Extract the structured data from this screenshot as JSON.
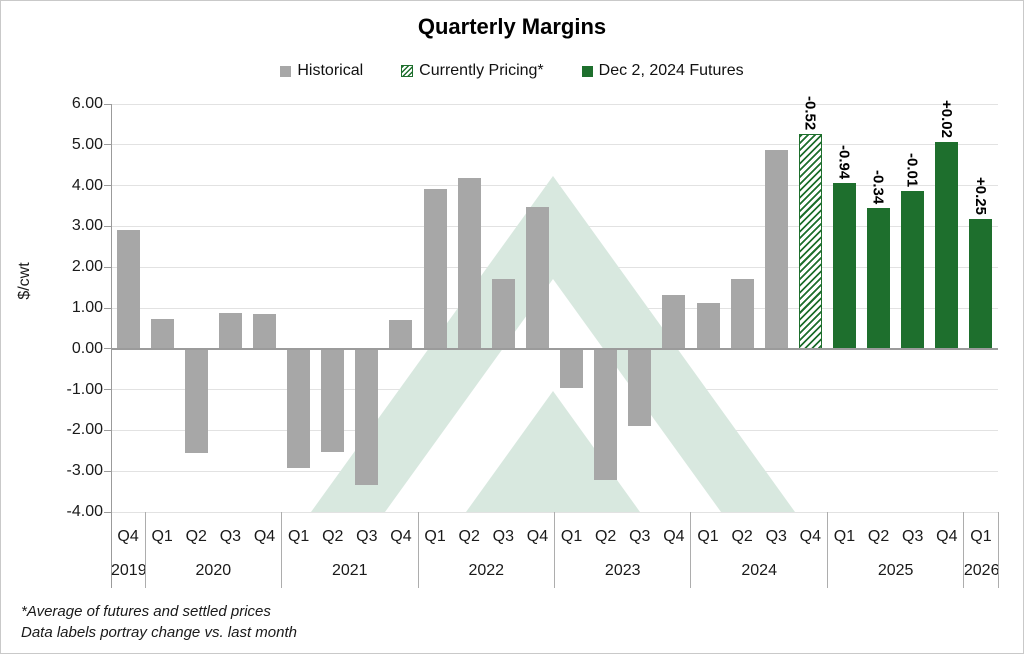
{
  "title": "Quarterly Margins",
  "legend": {
    "items": [
      {
        "label": "Historical",
        "swatch": "historical"
      },
      {
        "label": "Currently Pricing*",
        "swatch": "currently-pricing"
      },
      {
        "label": "Dec 2, 2024 Futures",
        "swatch": "futures"
      }
    ]
  },
  "footnotes": {
    "line1": "*Average of futures and settled prices",
    "line2": "Data labels portray change vs. last month"
  },
  "colors": {
    "historical_bar": "#a7a7a7",
    "futures_bar": "#1e6f2d",
    "hatch_stripe": "#1e6f2d",
    "gridline": "#e2e2e2",
    "axis_line": "#9b9b9b",
    "watermark_green": "#d8e8df",
    "label_text": "#000000"
  },
  "chart_data": {
    "type": "bar",
    "title": "Quarterly Margins",
    "xlabel": "",
    "ylabel": "$/cwt",
    "ylim": [
      -4,
      6
    ],
    "ytick_step": 1,
    "ytick_labels": [
      "6.00",
      "5.00",
      "4.00",
      "3.00",
      "2.00",
      "1.00",
      "0.00",
      "-1.00",
      "-2.00",
      "-3.00",
      "-4.00"
    ],
    "grid": true,
    "legend_position": "top",
    "series_names": [
      "Historical",
      "Currently Pricing*",
      "Dec 2, 2024 Futures"
    ],
    "bars": [
      {
        "quarter": "Q4",
        "year": "2019",
        "value": 2.9,
        "series": "historical"
      },
      {
        "quarter": "Q1",
        "year": "2020",
        "value": 0.72,
        "series": "historical"
      },
      {
        "quarter": "Q2",
        "year": "2020",
        "value": -2.55,
        "series": "historical"
      },
      {
        "quarter": "Q3",
        "year": "2020",
        "value": 0.88,
        "series": "historical"
      },
      {
        "quarter": "Q4",
        "year": "2020",
        "value": 0.85,
        "series": "historical"
      },
      {
        "quarter": "Q1",
        "year": "2021",
        "value": -2.93,
        "series": "historical"
      },
      {
        "quarter": "Q2",
        "year": "2021",
        "value": -2.52,
        "series": "historical"
      },
      {
        "quarter": "Q3",
        "year": "2021",
        "value": -3.33,
        "series": "historical"
      },
      {
        "quarter": "Q4",
        "year": "2021",
        "value": 0.7,
        "series": "historical"
      },
      {
        "quarter": "Q1",
        "year": "2022",
        "value": 3.92,
        "series": "historical"
      },
      {
        "quarter": "Q2",
        "year": "2022",
        "value": 4.18,
        "series": "historical"
      },
      {
        "quarter": "Q3",
        "year": "2022",
        "value": 1.7,
        "series": "historical"
      },
      {
        "quarter": "Q4",
        "year": "2022",
        "value": 3.48,
        "series": "historical"
      },
      {
        "quarter": "Q1",
        "year": "2023",
        "value": -0.97,
        "series": "historical"
      },
      {
        "quarter": "Q2",
        "year": "2023",
        "value": -3.22,
        "series": "historical"
      },
      {
        "quarter": "Q3",
        "year": "2023",
        "value": -1.88,
        "series": "historical"
      },
      {
        "quarter": "Q4",
        "year": "2023",
        "value": 1.32,
        "series": "historical"
      },
      {
        "quarter": "Q1",
        "year": "2024",
        "value": 1.13,
        "series": "historical"
      },
      {
        "quarter": "Q2",
        "year": "2024",
        "value": 1.7,
        "series": "historical"
      },
      {
        "quarter": "Q3",
        "year": "2024",
        "value": 4.88,
        "series": "historical"
      },
      {
        "quarter": "Q4",
        "year": "2024",
        "value": 5.26,
        "series": "pricing",
        "label": "-0.52"
      },
      {
        "quarter": "Q1",
        "year": "2025",
        "value": 4.06,
        "series": "futures",
        "label": "-0.94"
      },
      {
        "quarter": "Q2",
        "year": "2025",
        "value": 3.45,
        "series": "futures",
        "label": "-0.34"
      },
      {
        "quarter": "Q3",
        "year": "2025",
        "value": 3.86,
        "series": "futures",
        "label": "-0.01"
      },
      {
        "quarter": "Q4",
        "year": "2025",
        "value": 5.06,
        "series": "futures",
        "label": "+0.02"
      },
      {
        "quarter": "Q1",
        "year": "2026",
        "value": 3.18,
        "series": "futures",
        "label": "+0.25"
      }
    ],
    "year_groups": [
      {
        "year": "2019",
        "quarters": 1
      },
      {
        "year": "2020",
        "quarters": 4
      },
      {
        "year": "2021",
        "quarters": 4
      },
      {
        "year": "2022",
        "quarters": 4
      },
      {
        "year": "2023",
        "quarters": 4
      },
      {
        "year": "2024",
        "quarters": 4
      },
      {
        "year": "2025",
        "quarters": 4
      },
      {
        "year": "2026",
        "quarters": 1
      }
    ]
  }
}
